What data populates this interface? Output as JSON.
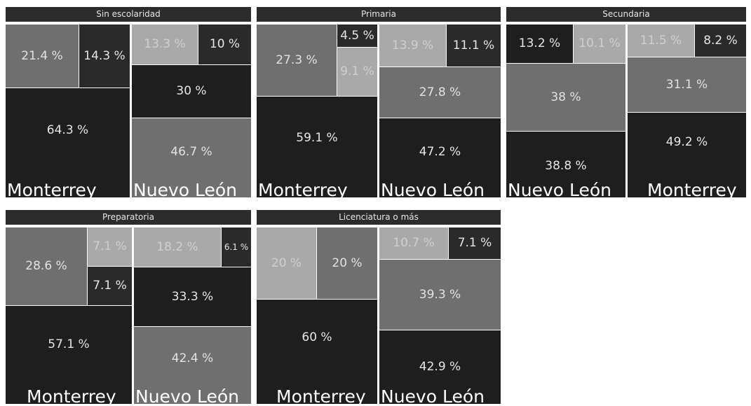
{
  "chart_data": [
    {
      "type": "treemap",
      "title": "Sin escolaridad",
      "series": [
        {
          "name": "Monterrey",
          "values": [
            21.4,
            14.3,
            64.3
          ],
          "labels": [
            "21.4 %",
            "14.3 %",
            "64.3 %"
          ]
        },
        {
          "name": "Nuevo León",
          "values": [
            13.3,
            10,
            30,
            46.7
          ],
          "labels": [
            "13.3 %",
            "10 %",
            "30 %",
            "46.7 %"
          ]
        }
      ]
    },
    {
      "type": "treemap",
      "title": "Primaria",
      "series": [
        {
          "name": "Monterrey",
          "values": [
            27.3,
            4.5,
            9.1,
            59.1
          ],
          "labels": [
            "27.3 %",
            "4.5 %",
            "9.1 %",
            "59.1 %"
          ]
        },
        {
          "name": "Nuevo León",
          "values": [
            13.9,
            11.1,
            27.8,
            47.2
          ],
          "labels": [
            "13.9 %",
            "11.1 %",
            "27.8 %",
            "47.2 %"
          ]
        }
      ]
    },
    {
      "type": "treemap",
      "title": "Secundaria",
      "series": [
        {
          "name": "Nuevo León",
          "values": [
            13.2,
            10.1,
            38,
            38.8
          ],
          "labels": [
            "13.2 %",
            "10.1 %",
            "38 %",
            "38.8 %"
          ]
        },
        {
          "name": "Monterrey",
          "values": [
            11.5,
            8.2,
            31.1,
            49.2
          ],
          "labels": [
            "11.5 %",
            "8.2 %",
            "31.1 %",
            "49.2 %"
          ]
        }
      ]
    },
    {
      "type": "treemap",
      "title": "Preparatoria",
      "series": [
        {
          "name": "Monterrey",
          "values": [
            28.6,
            7.1,
            7.1,
            57.1
          ],
          "labels": [
            "28.6 %",
            "7.1 %",
            "7.1 %",
            "57.1 %"
          ]
        },
        {
          "name": "Nuevo León",
          "values": [
            18.2,
            6.1,
            33.3,
            42.4
          ],
          "labels": [
            "18.2 %",
            "6.1 %",
            "33.3 %",
            "42.4 %"
          ]
        }
      ]
    },
    {
      "type": "treemap",
      "title": "Licenciatura o más",
      "series": [
        {
          "name": "Monterrey",
          "values": [
            20,
            20,
            60
          ],
          "labels": [
            "20 %",
            "20 %",
            "60 %"
          ]
        },
        {
          "name": "Nuevo León",
          "values": [
            10.7,
            7.1,
            39.3,
            42.9
          ],
          "labels": [
            "10.7 %",
            "7.1 %",
            "39.3 %",
            "42.9 %"
          ]
        }
      ]
    }
  ]
}
